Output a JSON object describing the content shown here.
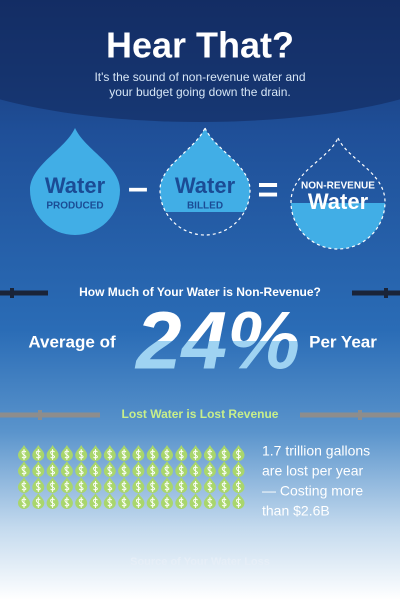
{
  "header": {
    "title": "Hear That?",
    "subtitle_lines": [
      "It's the sound of non-revenue water and",
      "your budget going down the drain."
    ]
  },
  "equation": {
    "items": [
      {
        "label": "Water",
        "sublabel": "PRODUCED"
      },
      {
        "label": "Water",
        "sublabel": "BILLED"
      },
      {
        "label": "Water",
        "sublabel": "NON-REVENUE"
      }
    ],
    "operators": [
      "–",
      "="
    ]
  },
  "question": "How Much of Your Water is Non-Revenue?",
  "stat": {
    "prefix": "Average of",
    "value": "24%",
    "suffix": "Per Year"
  },
  "revenue": {
    "heading": "Lost Water is Lost Revenue",
    "lines": [
      "1.7 trillion gallons",
      "are lost per year",
      "— Costing more",
      "than $2.6B"
    ]
  },
  "footer": "Source of Your Water Loss"
}
